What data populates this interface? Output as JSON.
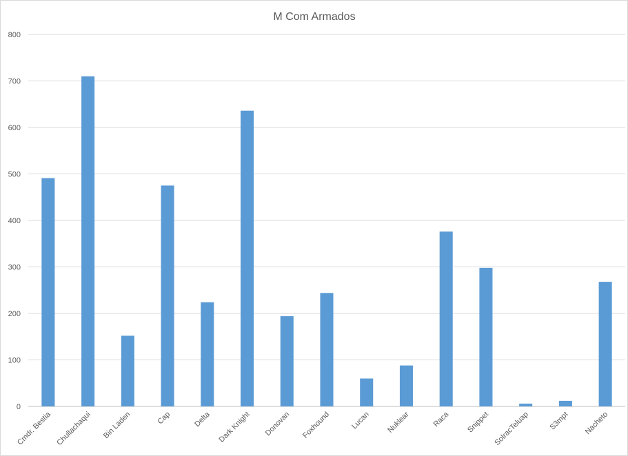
{
  "chart_data": {
    "type": "bar",
    "title": "M Com Armados",
    "categories": [
      "Cmdr. Bestia",
      "Chullachaqui",
      "Bin Laden",
      "Cap",
      "Delta",
      "Dark Knight",
      "Donovan",
      "Foxhound",
      "Lucan",
      "Nuklear",
      "Raca",
      "Snippet",
      "SolracTeluap",
      "S3mpt",
      "Nacheto"
    ],
    "values": [
      491,
      710,
      152,
      475,
      224,
      636,
      194,
      244,
      60,
      88,
      376,
      298,
      6,
      12,
      268
    ],
    "yticks": [
      "0",
      "100",
      "200",
      "300",
      "400",
      "500",
      "600",
      "700",
      "800"
    ],
    "ylim": [
      0,
      800
    ],
    "grid": true,
    "legend": "none",
    "bar_color": "#5b9bd5"
  }
}
